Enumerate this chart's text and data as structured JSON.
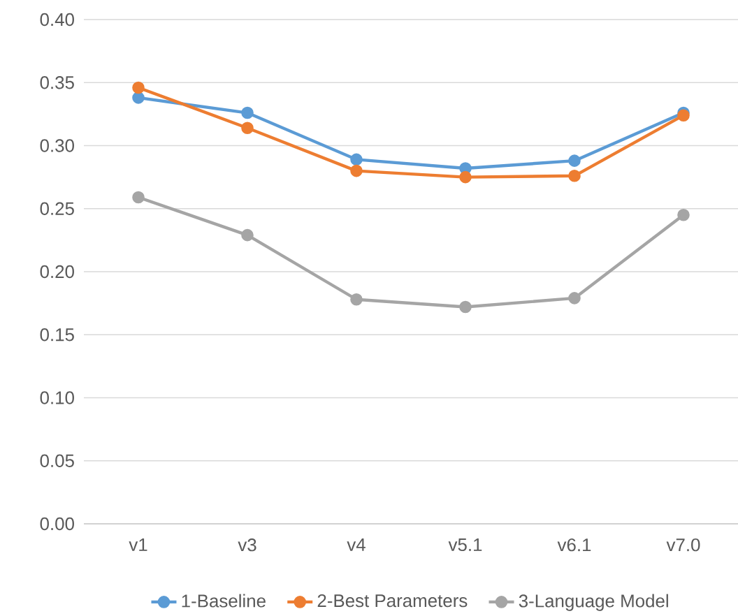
{
  "chart_data": {
    "type": "line",
    "categories": [
      "v1",
      "v3",
      "v4",
      "v5.1",
      "v6.1",
      "v7.0"
    ],
    "series": [
      {
        "name": "1-Baseline",
        "color": "#5b9bd5",
        "values": [
          0.338,
          0.326,
          0.289,
          0.282,
          0.288,
          0.326
        ]
      },
      {
        "name": "2-Best Parameters",
        "color": "#ed7d31",
        "values": [
          0.346,
          0.314,
          0.28,
          0.275,
          0.276,
          0.324
        ]
      },
      {
        "name": "3-Language Model",
        "color": "#a5a5a5",
        "values": [
          0.259,
          0.229,
          0.178,
          0.172,
          0.179,
          0.245
        ]
      }
    ],
    "ylim": [
      0,
      0.4
    ],
    "yticks": [
      {
        "value": 0,
        "label": "0.00"
      },
      {
        "value": 0.05,
        "label": "0.05"
      },
      {
        "value": 0.1,
        "label": "0.10"
      },
      {
        "value": 0.15,
        "label": "0.15"
      },
      {
        "value": 0.2,
        "label": "0.20"
      },
      {
        "value": 0.25,
        "label": "0.25"
      },
      {
        "value": 0.3,
        "label": "0.30"
      },
      {
        "value": 0.35,
        "label": "0.35"
      },
      {
        "value": 0.4,
        "label": "0.40"
      }
    ],
    "grid": "y",
    "legend": "bottom",
    "marker": "circle",
    "line_style": "solid"
  }
}
